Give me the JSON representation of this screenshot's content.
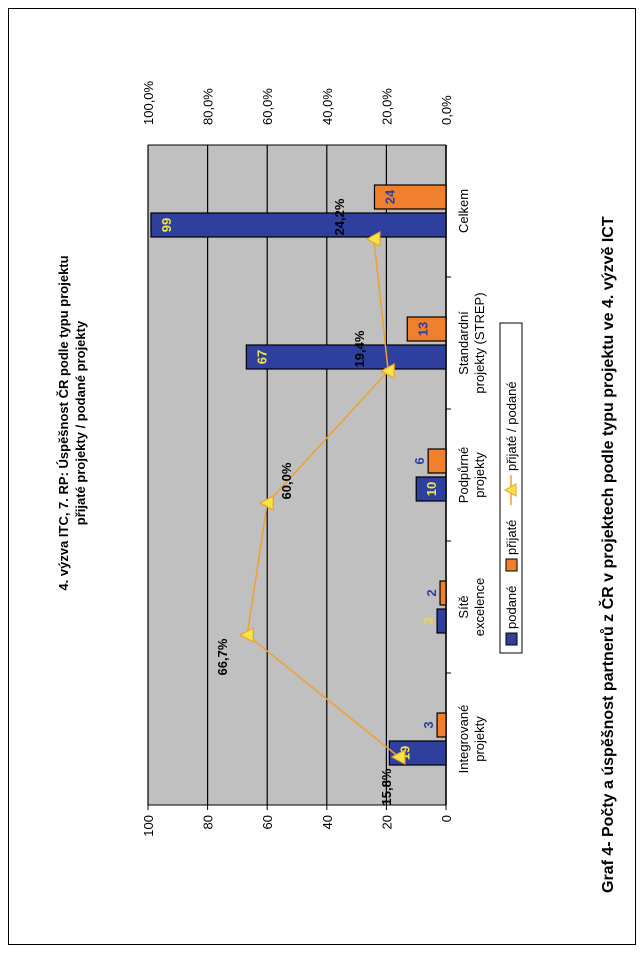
{
  "chart_data": {
    "type": "bar",
    "title_line1": "4. výzva ITC, 7. RP: Úspěšnost ČR podle typu projektu",
    "title_line2": "přijaté projekty / podané projekty",
    "categories": [
      [
        "Integrované",
        "projekty"
      ],
      [
        "Sítě",
        "excelence"
      ],
      [
        "Podpůrné",
        "projekty"
      ],
      [
        "Standardní",
        "projekty (STREP)"
      ],
      [
        "Celkem"
      ]
    ],
    "series": [
      {
        "name": "podané",
        "values": [
          19,
          3,
          10,
          67,
          99
        ],
        "color": "#2e3f9e"
      },
      {
        "name": "přijaté",
        "values": [
          3,
          2,
          6,
          13,
          24
        ],
        "color": "#f07f2e"
      }
    ],
    "ratio": {
      "name": "přijaté / podané",
      "values": [
        15.8,
        66.7,
        60.0,
        19.4,
        24.2
      ],
      "labels": [
        "15,8%",
        "66,7%",
        "60,0%",
        "19,4%",
        "24,2%"
      ],
      "color": "#f0a030"
    },
    "y_left": {
      "ticks": [
        "0",
        "20",
        "40",
        "60",
        "80",
        "100"
      ],
      "ylim": [
        0,
        100
      ]
    },
    "y_right": {
      "ticks": [
        "0,0%",
        "20,0%",
        "40,0%",
        "60,0%",
        "80,0%",
        "100,0%"
      ],
      "ylim": [
        0,
        100
      ]
    },
    "plot_bg": "#c0c0c0"
  },
  "caption": "Graf  4- Počty a úspěšnost partnerů z ČR v projektech podle typu projektu ve 4. výzvě ICT"
}
